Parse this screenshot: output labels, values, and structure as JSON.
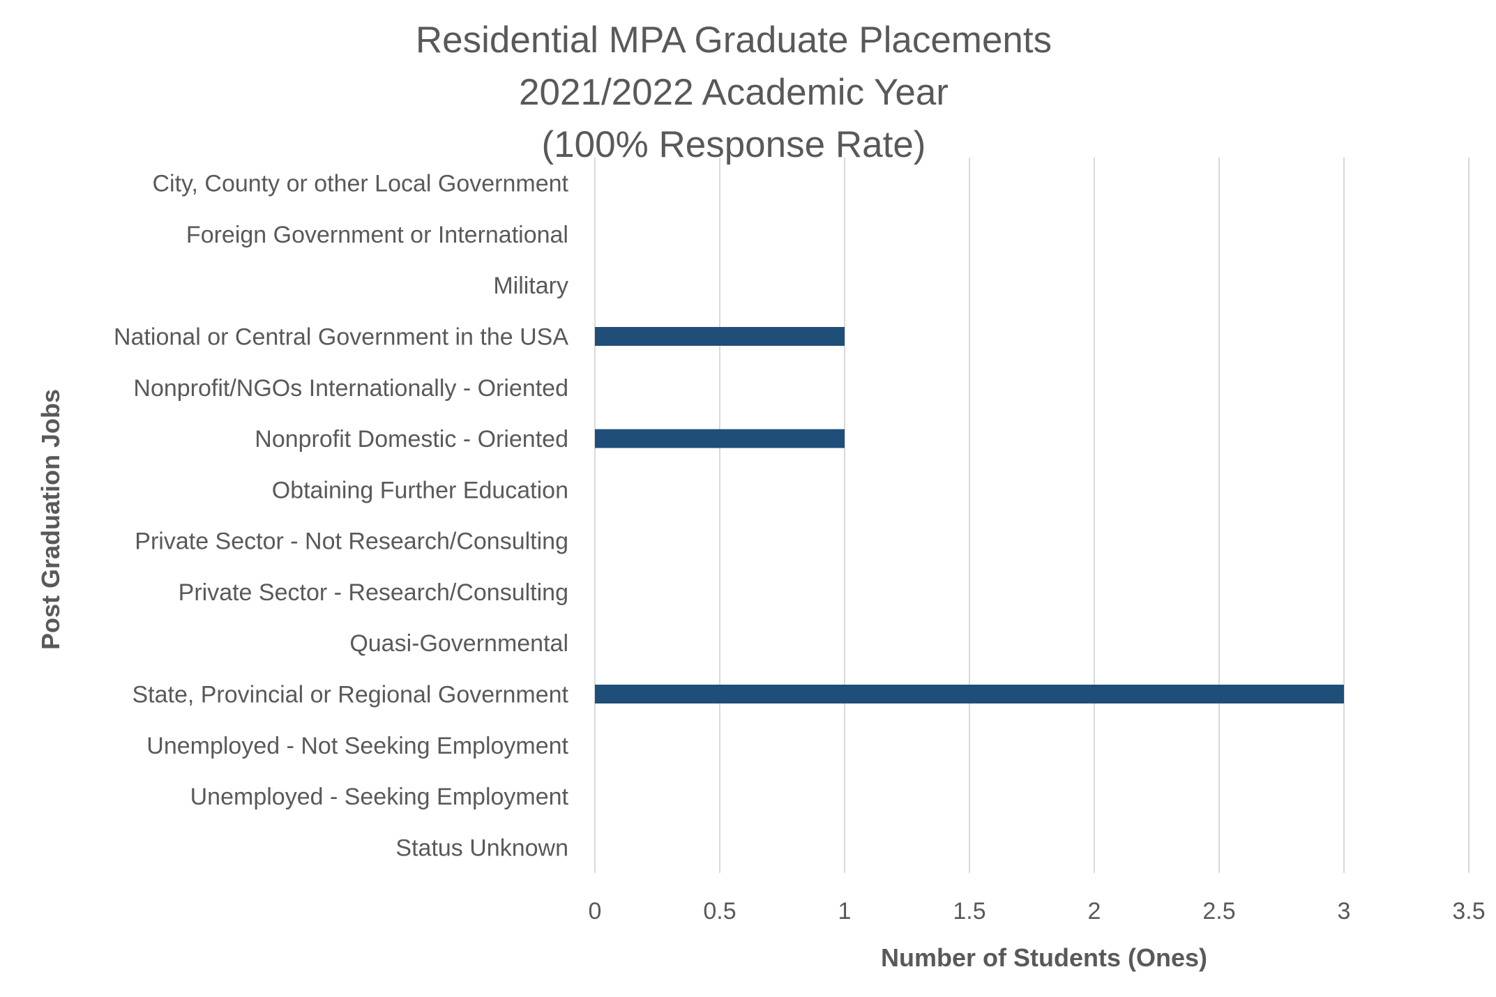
{
  "chart_data": {
    "type": "bar",
    "orientation": "horizontal",
    "title": [
      "Residential MPA Graduate Placements",
      "2021/2022 Academic Year",
      "(100% Response Rate)"
    ],
    "xlabel": "Number of Students (Ones)",
    "ylabel": "Post Graduation Jobs",
    "categories": [
      "City, County or other Local Government",
      "Foreign Government or International",
      "Military",
      "National or Central Government in the USA",
      "Nonprofit/NGOs Internationally - Oriented",
      "Nonprofit Domestic - Oriented",
      "Obtaining Further Education",
      "Private Sector - Not Research/Consulting",
      "Private Sector - Research/Consulting",
      "Quasi-Governmental",
      "State, Provincial or Regional Government",
      "Unemployed - Not Seeking Employment",
      "Unemployed - Seeking Employment",
      "Status Unknown"
    ],
    "values": [
      0,
      0,
      0,
      1,
      0,
      1,
      0,
      0,
      0,
      0,
      3,
      0,
      0,
      0
    ],
    "xlim": [
      0,
      3.5
    ],
    "ticks": [
      "0",
      "0.5",
      "1",
      "1.5",
      "2",
      "2.5",
      "3",
      "3.5"
    ],
    "grid": true,
    "legend": "none",
    "bar_color": "#1f4e79"
  }
}
